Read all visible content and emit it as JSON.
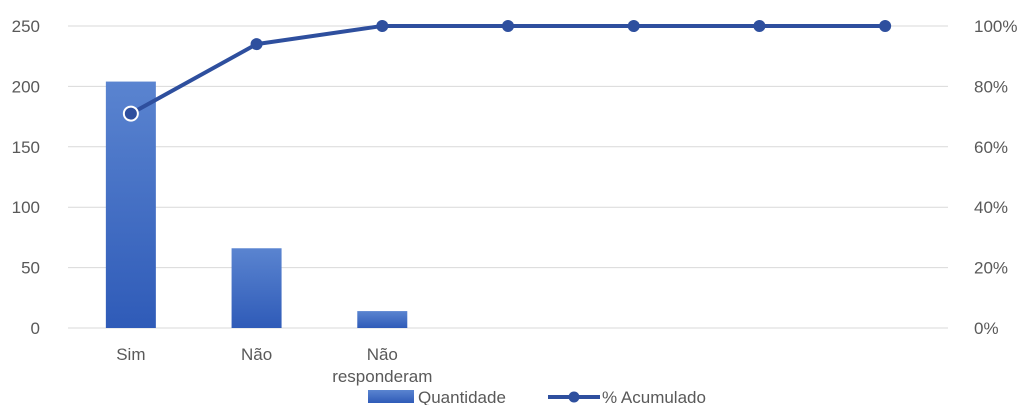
{
  "chart_data": {
    "type": "bar",
    "categories": [
      "Sim",
      "Não",
      "Não responderam",
      "",
      "",
      "",
      ""
    ],
    "category_lines": [
      [
        "Sim"
      ],
      [
        "Não"
      ],
      [
        "Não",
        "responderam"
      ],
      [],
      [],
      [],
      []
    ],
    "series": [
      {
        "name": "Quantidade",
        "type": "bar",
        "axis": "left",
        "values": [
          204,
          66,
          14,
          0,
          0,
          0,
          0
        ]
      },
      {
        "name": "% Acumulado",
        "type": "line",
        "axis": "right",
        "values": [
          71,
          94,
          100,
          100,
          100,
          100,
          100
        ]
      }
    ],
    "ylim_left": [
      0,
      250
    ],
    "yticks_left": [
      "0",
      "50",
      "100",
      "150",
      "200",
      "250"
    ],
    "ylim_right": [
      0,
      100
    ],
    "yticks_right": [
      "0%",
      "20%",
      "40%",
      "60%",
      "80%",
      "100%"
    ],
    "grid": true,
    "legend_position": "bottom",
    "colors": {
      "bar": "#4472c4",
      "bar_dark": "#2f5bb8",
      "line": "#2e4f9e",
      "grid": "#d9d9d9"
    }
  }
}
